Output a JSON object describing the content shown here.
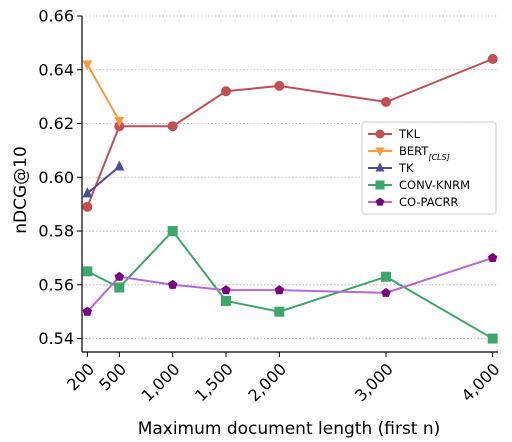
{
  "chart_data": {
    "type": "line",
    "xlabel": "Maximum document length (first n)",
    "ylabel": "nDCG@10",
    "xlim": [
      150,
      4050
    ],
    "ylim": [
      0.535,
      0.66
    ],
    "x_ticks": [
      200,
      500,
      1000,
      1500,
      2000,
      3000,
      4000
    ],
    "x_tick_labels": [
      "200",
      "500",
      "1,000",
      "1,500",
      "2,000",
      "3,000",
      "4,000"
    ],
    "y_ticks": [
      0.54,
      0.56,
      0.58,
      0.6,
      0.62,
      0.64,
      0.66
    ],
    "y_tick_labels": [
      "0.54",
      "0.56",
      "0.58",
      "0.60",
      "0.62",
      "0.64",
      "0.66"
    ],
    "grid": "horizontal dotted",
    "legend_position": "right",
    "series": [
      {
        "name": "TKL",
        "color": "#c44e52",
        "marker": "circle",
        "x": [
          200,
          500,
          1000,
          1500,
          2000,
          3000,
          4000
        ],
        "values": [
          0.589,
          0.619,
          0.619,
          0.632,
          0.634,
          0.628,
          0.644
        ]
      },
      {
        "name": "BERT",
        "name_sub": "[CLS]",
        "color": "#fd9a3c",
        "marker": "triangle-down",
        "x": [
          200,
          500
        ],
        "values": [
          0.642,
          0.621
        ]
      },
      {
        "name": "TK",
        "color": "#4c4c9a",
        "marker": "triangle-up",
        "x": [
          200,
          500
        ],
        "values": [
          0.594,
          0.604
        ]
      },
      {
        "name": "CONV-KNRM",
        "color": "#3ba86a",
        "marker": "square",
        "x": [
          200,
          500,
          1000,
          1500,
          2000,
          3000,
          4000
        ],
        "values": [
          0.565,
          0.559,
          0.58,
          0.554,
          0.55,
          0.563,
          0.54
        ]
      },
      {
        "name": "CO-PACRR",
        "color": "#7b0080",
        "line_color": "#b768d8",
        "marker": "pentagon",
        "x": [
          200,
          500,
          1000,
          1500,
          2000,
          3000,
          4000
        ],
        "values": [
          0.55,
          0.563,
          0.56,
          0.558,
          0.558,
          0.557,
          0.57
        ]
      }
    ]
  }
}
